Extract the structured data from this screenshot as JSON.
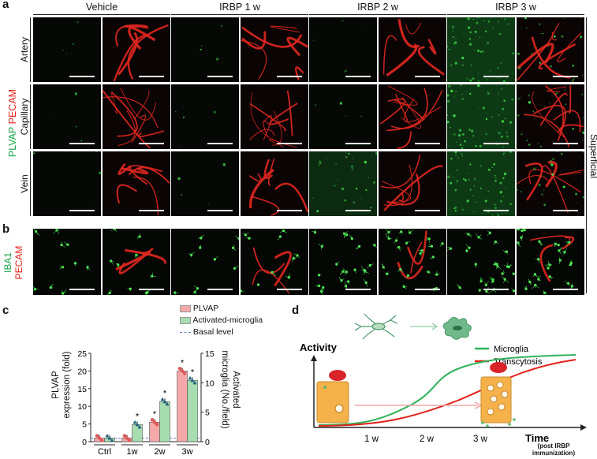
{
  "panel_a": {
    "letter": "a",
    "columns": [
      "Vehicle",
      "IRBP 1 w",
      "IRBP 2 w",
      "IRBP 3 w"
    ],
    "rows": [
      "Artery",
      "Capillary",
      "Vein"
    ],
    "stain_green": "PLVAP",
    "stain_red": "PECAM",
    "side_label": "Superficial"
  },
  "panel_b": {
    "letter": "b",
    "stain_green": "IBA1",
    "stain_red": "PECAM"
  },
  "panel_c": {
    "letter": "c",
    "legend": {
      "plvap": "PLVAP",
      "microglia": "Activated-microglia",
      "basal": "Basal level"
    },
    "y_left_label": "PLVAP\nexpression (fold)",
    "y_left_ticks": [
      "0",
      "5",
      "10",
      "15",
      "20",
      "25"
    ],
    "y_right_label": "Activated\nmicroglia (No./field)",
    "y_right_ticks": [
      "0",
      "5",
      "10",
      "15"
    ],
    "star": "*",
    "chart_data": {
      "type": "bar",
      "categories": [
        "Ctrl",
        "1w",
        "2w",
        "3w"
      ],
      "series": [
        {
          "name": "PLVAP",
          "values": [
            1,
            1,
            5.5,
            20
          ],
          "axis": "left",
          "color": "#f4a9a8"
        },
        {
          "name": "Activated-microglia",
          "values": [
            0.6,
            2.9,
            6.8,
            10.4
          ],
          "axis": "right",
          "color": "#a8ddb0"
        }
      ],
      "ylim_left": [
        0,
        25
      ],
      "ylim_right": [
        0,
        15
      ],
      "significant": [
        [
          false,
          false,
          true,
          true
        ],
        [
          false,
          true,
          true,
          true
        ]
      ]
    }
  },
  "panel_d": {
    "letter": "d",
    "y_label": "Activity",
    "legend": {
      "microglia": "Microglia",
      "transcytosis": "Transcytosis"
    },
    "x_ticks": [
      "1 w",
      "2 w",
      "3 w"
    ],
    "x_label": "Time",
    "x_sublabel": "(post IRBP\nimmunization)",
    "colors": {
      "microglia": "#2fb35a",
      "transcytosis": "#e2231a"
    }
  }
}
